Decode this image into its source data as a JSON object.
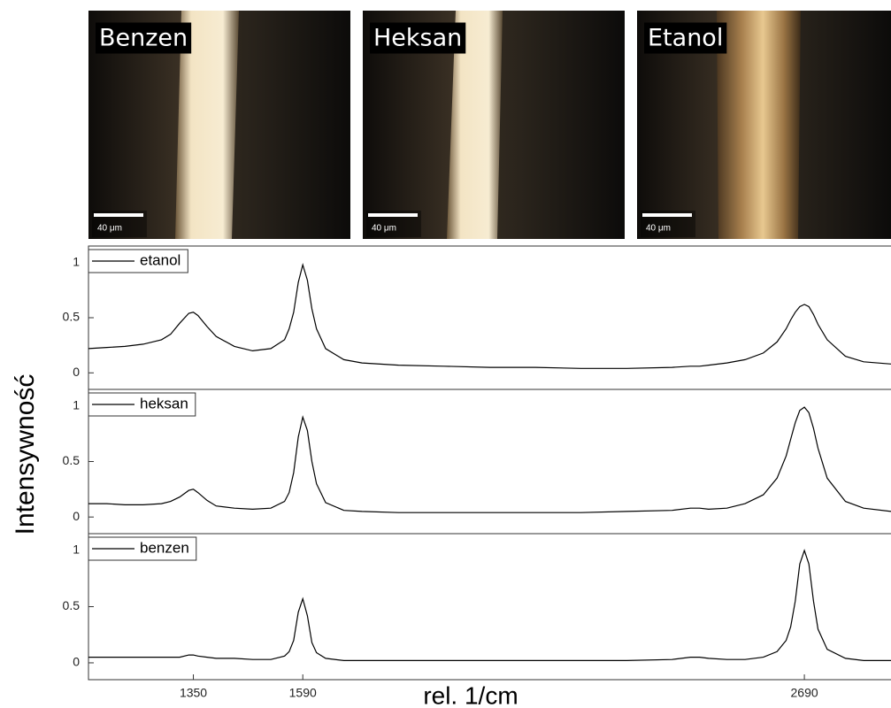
{
  "images": [
    {
      "label": "Benzen",
      "scale_bar": "40 μm"
    },
    {
      "label": "Heksan",
      "scale_bar": "40 μm"
    },
    {
      "label": "Etanol",
      "scale_bar": "40 μm"
    }
  ],
  "chart_data": [
    {
      "type": "line",
      "x": [
        1120,
        1160,
        1200,
        1240,
        1280,
        1300,
        1320,
        1340,
        1350,
        1360,
        1380,
        1400,
        1440,
        1480,
        1520,
        1550,
        1560,
        1570,
        1580,
        1590,
        1600,
        1610,
        1620,
        1640,
        1680,
        1720,
        1800,
        1900,
        2000,
        2100,
        2200,
        2300,
        2400,
        2440,
        2460,
        2480,
        2520,
        2560,
        2600,
        2630,
        2650,
        2660,
        2670,
        2680,
        2690,
        2700,
        2710,
        2720,
        2740,
        2780,
        2820,
        2880
      ],
      "series": [
        {
          "name": "etanol",
          "color": "#000000",
          "values": [
            0.22,
            0.23,
            0.24,
            0.26,
            0.3,
            0.35,
            0.45,
            0.54,
            0.55,
            0.52,
            0.42,
            0.33,
            0.24,
            0.2,
            0.22,
            0.3,
            0.4,
            0.55,
            0.82,
            0.98,
            0.84,
            0.58,
            0.4,
            0.22,
            0.12,
            0.09,
            0.07,
            0.06,
            0.05,
            0.05,
            0.04,
            0.04,
            0.05,
            0.06,
            0.06,
            0.07,
            0.09,
            0.12,
            0.18,
            0.28,
            0.4,
            0.48,
            0.55,
            0.6,
            0.62,
            0.6,
            0.53,
            0.44,
            0.3,
            0.15,
            0.1,
            0.08
          ]
        }
      ],
      "xlim": [
        1120,
        2880
      ],
      "ylim": [
        -0.15,
        1.15
      ],
      "yticks": [
        0,
        0.5,
        1
      ]
    },
    {
      "type": "line",
      "x": [
        1120,
        1160,
        1200,
        1240,
        1280,
        1300,
        1320,
        1340,
        1350,
        1360,
        1380,
        1400,
        1440,
        1480,
        1520,
        1550,
        1560,
        1570,
        1580,
        1590,
        1600,
        1610,
        1620,
        1640,
        1680,
        1720,
        1800,
        1900,
        2000,
        2100,
        2200,
        2300,
        2400,
        2440,
        2460,
        2480,
        2520,
        2560,
        2600,
        2630,
        2650,
        2660,
        2670,
        2680,
        2690,
        2700,
        2710,
        2720,
        2740,
        2780,
        2820,
        2880
      ],
      "series": [
        {
          "name": "heksan",
          "color": "#000000",
          "values": [
            0.12,
            0.12,
            0.11,
            0.11,
            0.12,
            0.14,
            0.18,
            0.24,
            0.25,
            0.22,
            0.15,
            0.1,
            0.08,
            0.07,
            0.08,
            0.14,
            0.22,
            0.4,
            0.72,
            0.9,
            0.78,
            0.5,
            0.3,
            0.13,
            0.06,
            0.05,
            0.04,
            0.04,
            0.04,
            0.04,
            0.04,
            0.05,
            0.06,
            0.08,
            0.08,
            0.07,
            0.08,
            0.12,
            0.2,
            0.35,
            0.55,
            0.7,
            0.85,
            0.96,
            0.99,
            0.94,
            0.8,
            0.62,
            0.35,
            0.14,
            0.08,
            0.05
          ]
        }
      ],
      "xlim": [
        1120,
        2880
      ],
      "ylim": [
        -0.15,
        1.15
      ],
      "yticks": [
        0,
        0.5,
        1
      ],
      "ylabel": "Intensywność"
    },
    {
      "type": "line",
      "x": [
        1120,
        1160,
        1200,
        1240,
        1280,
        1300,
        1320,
        1340,
        1350,
        1360,
        1380,
        1400,
        1440,
        1480,
        1520,
        1550,
        1560,
        1570,
        1580,
        1590,
        1600,
        1610,
        1620,
        1640,
        1680,
        1720,
        1800,
        1900,
        2000,
        2100,
        2200,
        2300,
        2400,
        2440,
        2460,
        2480,
        2520,
        2560,
        2600,
        2630,
        2650,
        2660,
        2670,
        2680,
        2690,
        2700,
        2710,
        2720,
        2740,
        2780,
        2820,
        2880
      ],
      "series": [
        {
          "name": "benzen",
          "color": "#000000",
          "values": [
            0.05,
            0.05,
            0.05,
            0.05,
            0.05,
            0.05,
            0.05,
            0.07,
            0.07,
            0.06,
            0.05,
            0.04,
            0.04,
            0.03,
            0.03,
            0.06,
            0.1,
            0.2,
            0.45,
            0.57,
            0.42,
            0.18,
            0.09,
            0.04,
            0.02,
            0.02,
            0.02,
            0.02,
            0.02,
            0.02,
            0.02,
            0.02,
            0.03,
            0.05,
            0.05,
            0.04,
            0.03,
            0.03,
            0.05,
            0.1,
            0.2,
            0.32,
            0.55,
            0.88,
            1.0,
            0.88,
            0.55,
            0.3,
            0.12,
            0.04,
            0.02,
            0.02
          ]
        }
      ],
      "xlim": [
        1120,
        2880
      ],
      "ylim": [
        -0.15,
        1.15
      ],
      "yticks": [
        0,
        0.5,
        1
      ],
      "xticks": [
        1350,
        1590,
        2690
      ],
      "xlabel": "rel. 1/cm"
    }
  ]
}
